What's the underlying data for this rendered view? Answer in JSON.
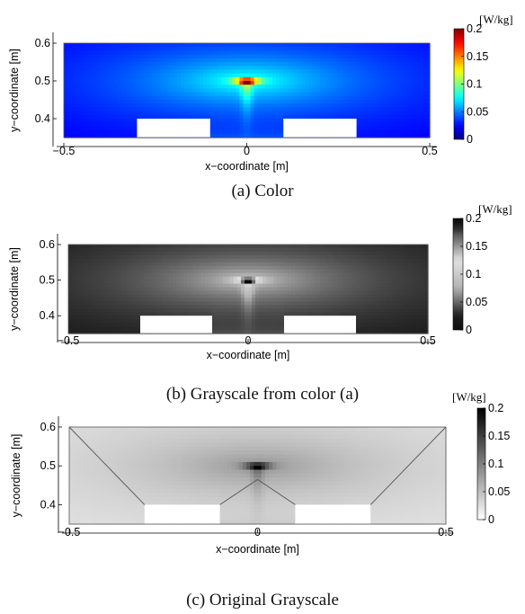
{
  "chart_data": [
    {
      "type": "heatmap",
      "colormap": "jet",
      "caption": "(a) Color",
      "xlabel": "x−coordinate [m]",
      "ylabel": "y−coordinate [m]",
      "xlim": [
        -0.5,
        0.5
      ],
      "ylim": [
        0.35,
        0.6
      ],
      "xticks": [
        "−0.5",
        "0",
        "0.5"
      ],
      "yticks": [
        "0.4",
        "0.5",
        "0.6"
      ],
      "colorbar": {
        "unit": "[W/kg]",
        "range": [
          0,
          0.2
        ],
        "ticks": [
          "0",
          "0.05",
          "0.1",
          "0.15",
          "0.2"
        ]
      },
      "peak": {
        "x": 0,
        "y": 0.5,
        "value": 0.2
      },
      "obstacles": [
        {
          "x": [
            -0.3,
            -0.1
          ],
          "y": [
            0.35,
            0.4
          ]
        },
        {
          "x": [
            0.1,
            0.3
          ],
          "y": [
            0.35,
            0.4
          ]
        }
      ],
      "diagonal_lines": false
    },
    {
      "type": "heatmap",
      "colormap": "gray-from-jet",
      "caption": "(b) Grayscale from color (a)",
      "xlabel": "x−coordinate [m]",
      "ylabel": "y−coordinate [m]",
      "xlim": [
        -0.5,
        0.5
      ],
      "ylim": [
        0.35,
        0.6
      ],
      "xticks": [
        "−0.5",
        "0",
        "0.5"
      ],
      "yticks": [
        "0.4",
        "0.5",
        "0.6"
      ],
      "colorbar": {
        "unit": "[W/kg]",
        "range": [
          0,
          0.2
        ],
        "ticks": [
          "0",
          "0.05",
          "0.1",
          "0.15",
          "0.2"
        ]
      },
      "peak": {
        "x": 0,
        "y": 0.5,
        "value": 0.2
      },
      "obstacles": [
        {
          "x": [
            -0.3,
            -0.1
          ],
          "y": [
            0.35,
            0.4
          ]
        },
        {
          "x": [
            0.1,
            0.3
          ],
          "y": [
            0.35,
            0.4
          ]
        }
      ],
      "diagonal_lines": false
    },
    {
      "type": "heatmap",
      "colormap": "gray-inverse",
      "caption": "(c) Original Grayscale",
      "xlabel": "x−coordinate [m]",
      "ylabel": "y−coordinate [m]",
      "xlim": [
        -0.5,
        0.5
      ],
      "ylim": [
        0.35,
        0.6
      ],
      "xticks": [
        "−0.5",
        "0",
        "0.5"
      ],
      "yticks": [
        "0.4",
        "0.5",
        "0.6"
      ],
      "colorbar": {
        "unit": "[W/kg]",
        "range": [
          0,
          0.2
        ],
        "ticks": [
          "0",
          "0.05",
          "0.1",
          "0.15",
          "0.2"
        ]
      },
      "peak": {
        "x": 0,
        "y": 0.5,
        "value": 0.2
      },
      "obstacles": [
        {
          "x": [
            -0.3,
            -0.1
          ],
          "y": [
            0.35,
            0.4
          ]
        },
        {
          "x": [
            0.1,
            0.3
          ],
          "y": [
            0.35,
            0.4
          ]
        }
      ],
      "diagonal_lines": true
    }
  ]
}
